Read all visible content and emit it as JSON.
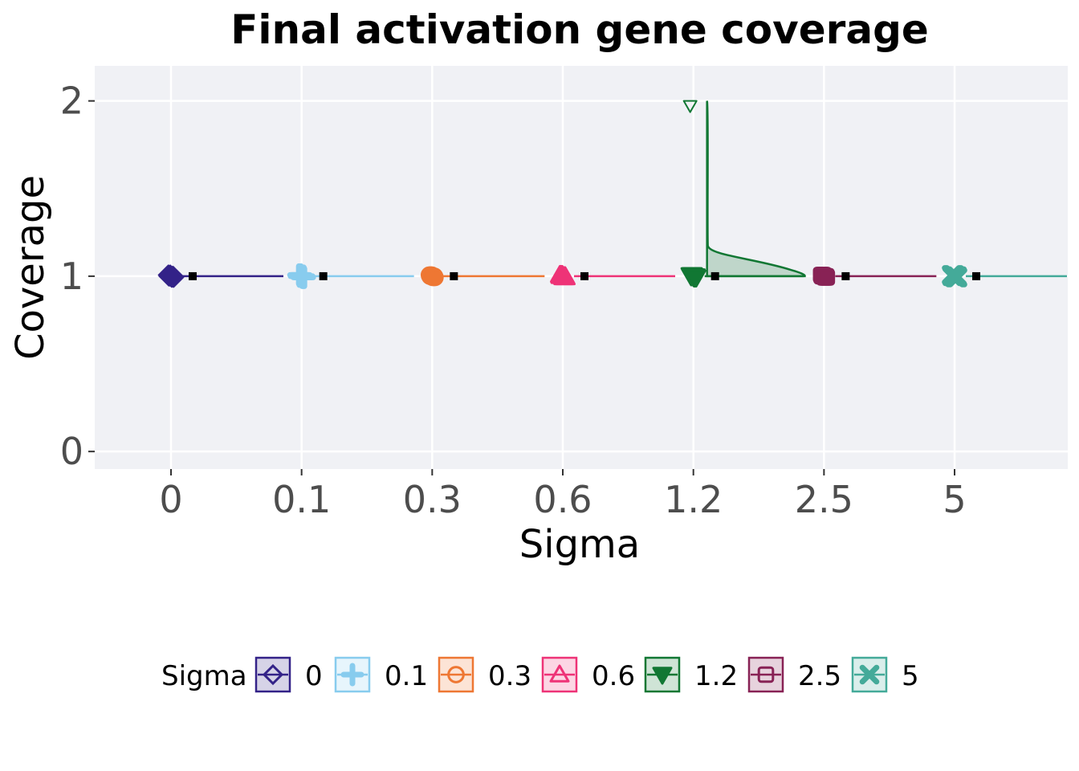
{
  "chart_data": {
    "type": "raincloud",
    "title": "Final activation gene coverage",
    "xlabel": "Sigma",
    "ylabel": "Coverage",
    "categories": [
      "0",
      "0.1",
      "0.3",
      "0.6",
      "1.2",
      "2.5",
      "5"
    ],
    "yticks": [
      0,
      1,
      2
    ],
    "ylim": [
      -0.1,
      2.2
    ],
    "grid": true,
    "legend": {
      "title": "Sigma",
      "position": "bottom"
    },
    "series": [
      {
        "name": "0",
        "color": "#332288",
        "shape": "diamond",
        "points": [
          1
        ],
        "median": 1,
        "outlier": null,
        "density_peak": null
      },
      {
        "name": "0.1",
        "color": "#88CCEE",
        "shape": "plus",
        "points": [
          1
        ],
        "median": 1,
        "outlier": null,
        "density_peak": null
      },
      {
        "name": "0.3",
        "color": "#EE7733",
        "shape": "circle",
        "points": [
          1
        ],
        "median": 1,
        "outlier": null,
        "density_peak": null
      },
      {
        "name": "0.6",
        "color": "#EE3377",
        "shape": "triangle-up",
        "points": [
          1
        ],
        "median": 1,
        "outlier": null,
        "density_peak": null
      },
      {
        "name": "1.2",
        "color": "#117733",
        "shape": "triangle-down",
        "points": [
          1,
          2
        ],
        "median": 1,
        "outlier": 2,
        "density_peak": 1
      },
      {
        "name": "2.5",
        "color": "#882255",
        "shape": "square",
        "points": [
          1
        ],
        "median": 1,
        "outlier": null,
        "density_peak": null
      },
      {
        "name": "5",
        "color": "#44AA99",
        "shape": "cross",
        "points": [
          1
        ],
        "median": 1,
        "outlier": null,
        "density_peak": null
      }
    ]
  }
}
